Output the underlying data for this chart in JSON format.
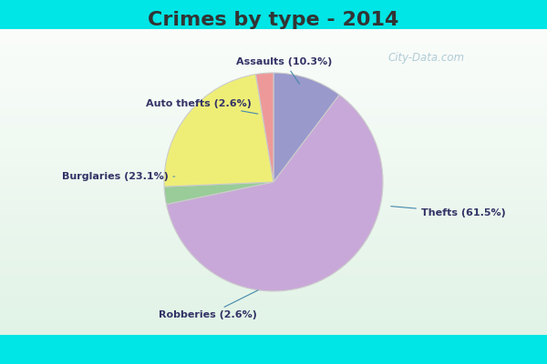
{
  "title": "Crimes by type - 2014",
  "labels_ordered": [
    "Assaults",
    "Thefts",
    "Robberies",
    "Burglaries",
    "Auto thefts"
  ],
  "values_ordered": [
    10.3,
    61.5,
    2.6,
    23.1,
    2.6
  ],
  "display_labels": {
    "Assaults": "Assaults (10.3%)",
    "Thefts": "Thefts (61.5%)",
    "Robberies": "Robberies (2.6%)",
    "Burglaries": "Burglaries (23.1%)",
    "Auto thefts": "Auto thefts (2.6%)"
  },
  "colors_ordered": [
    "#9999CC",
    "#C8A8D8",
    "#99CC99",
    "#EEEE77",
    "#EE9999"
  ],
  "bg_cyan": "#00E5E5",
  "bg_main_top": "#E8F8F0",
  "bg_main_bottom": "#C8E8D8",
  "startangle": 90,
  "title_fontsize": 16,
  "label_fontsize": 8,
  "watermark": "City-Data.com"
}
